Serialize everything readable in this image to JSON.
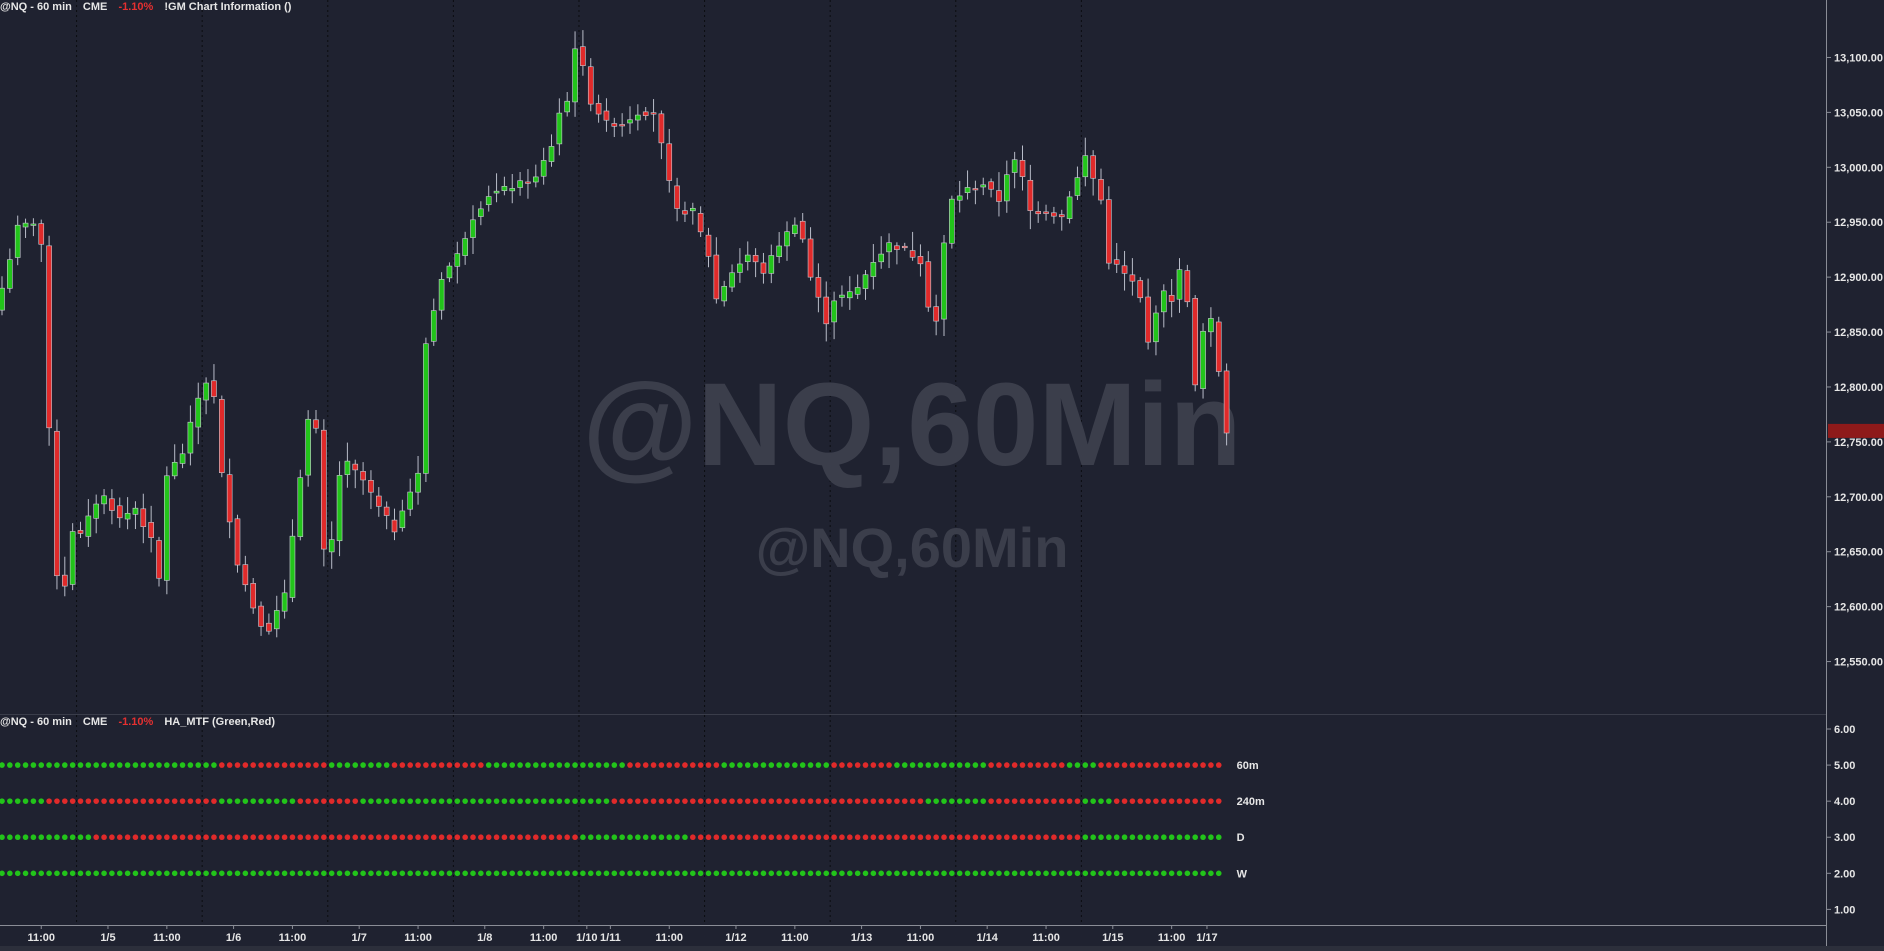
{
  "header_top": {
    "symbol": "@NQ - 60 min",
    "exchange": "CME",
    "change": "-1.10%",
    "indicator": "!GM  Chart Information ()"
  },
  "header_bottom": {
    "symbol": "@NQ - 60 min",
    "exchange": "CME",
    "change": "-1.10%",
    "indicator": "HA_MTF (Green,Red)"
  },
  "colors": {
    "background": "#1f2230",
    "up": "#22c41a",
    "down": "#e02a2a",
    "text": "#e6e6e6",
    "watermark": "#3b3e4b"
  },
  "chart_data": [
    {
      "type": "candlestick",
      "watermark_large": "@NQ,60Min",
      "watermark_small": "@NQ,60Min",
      "y_ticks": [
        12550,
        12600,
        12650,
        12700,
        12750,
        12800,
        12850,
        12900,
        12950,
        13000,
        13050,
        13100
      ],
      "y_tick_labels": [
        "12,550.00",
        "12,600.00",
        "12,650.00",
        "12,700.00",
        "12,750.00",
        "12,800.00",
        "12,850.00",
        "12,900.00",
        "12,950.00",
        "13,000.00",
        "13,050.00",
        "13,100.00"
      ],
      "ylim": [
        12515,
        13125
      ],
      "last_price": 12760,
      "x_labels": [
        "11:00",
        "1/5",
        "11:00",
        "1/6",
        "11:00",
        "1/7",
        "11:00",
        "1/8",
        "11:00",
        "1/10",
        "1/11",
        "11:00",
        "1/12",
        "11:00",
        "1/13",
        "11:00",
        "1/14",
        "11:00",
        "1/15",
        "11:00",
        "1/17"
      ],
      "x_label_positions": [
        5,
        13.5,
        21,
        29.5,
        37,
        45.5,
        53,
        61.5,
        69,
        74.5,
        77.5,
        85,
        93.5,
        101,
        109.5,
        117,
        125.5,
        133,
        141.5,
        149,
        153.5
      ],
      "day_separators": [
        10,
        26,
        42,
        58,
        74,
        90,
        106,
        122,
        138
      ],
      "anchors": [
        [
          0,
          12890
        ],
        [
          2,
          12945
        ],
        [
          4,
          12950
        ],
        [
          5,
          12930
        ],
        [
          6,
          12760
        ],
        [
          7,
          12630
        ],
        [
          8,
          12620
        ],
        [
          9,
          12670
        ],
        [
          10,
          12665
        ],
        [
          12,
          12695
        ],
        [
          13,
          12700
        ],
        [
          15,
          12680
        ],
        [
          17,
          12690
        ],
        [
          19,
          12660
        ],
        [
          20,
          12625
        ],
        [
          21,
          12720
        ],
        [
          23,
          12740
        ],
        [
          25,
          12790
        ],
        [
          26,
          12805
        ],
        [
          27,
          12790
        ],
        [
          28,
          12720
        ],
        [
          29,
          12680
        ],
        [
          30,
          12640
        ],
        [
          32,
          12600
        ],
        [
          33,
          12585
        ],
        [
          34,
          12580
        ],
        [
          36,
          12610
        ],
        [
          38,
          12720
        ],
        [
          39,
          12770
        ],
        [
          40,
          12760
        ],
        [
          41,
          12650
        ],
        [
          42,
          12660
        ],
        [
          43,
          12720
        ],
        [
          44,
          12730
        ],
        [
          46,
          12715
        ],
        [
          48,
          12690
        ],
        [
          50,
          12670
        ],
        [
          51,
          12690
        ],
        [
          53,
          12720
        ],
        [
          54,
          12840
        ],
        [
          56,
          12900
        ],
        [
          58,
          12920
        ],
        [
          60,
          12955
        ],
        [
          62,
          12975
        ],
        [
          64,
          12980
        ],
        [
          66,
          12985
        ],
        [
          68,
          12990
        ],
        [
          70,
          13020
        ],
        [
          71,
          13050
        ],
        [
          72,
          13060
        ],
        [
          73,
          13110
        ],
        [
          74,
          13090
        ],
        [
          75,
          13060
        ],
        [
          77,
          13040
        ],
        [
          79,
          13040
        ],
        [
          81,
          13050
        ],
        [
          83,
          13050
        ],
        [
          84,
          13020
        ],
        [
          85,
          12985
        ],
        [
          86,
          12960
        ],
        [
          88,
          12960
        ],
        [
          89,
          12940
        ],
        [
          90,
          12920
        ],
        [
          91,
          12880
        ],
        [
          93,
          12905
        ],
        [
          95,
          12920
        ],
        [
          97,
          12905
        ],
        [
          99,
          12930
        ],
        [
          101,
          12950
        ],
        [
          102,
          12935
        ],
        [
          103,
          12900
        ],
        [
          105,
          12860
        ],
        [
          106,
          12880
        ],
        [
          108,
          12885
        ],
        [
          109,
          12890
        ],
        [
          111,
          12915
        ],
        [
          113,
          12930
        ],
        [
          115,
          12925
        ],
        [
          117,
          12915
        ],
        [
          118,
          12875
        ],
        [
          119,
          12860
        ],
        [
          120,
          12930
        ],
        [
          121,
          12970
        ],
        [
          123,
          12980
        ],
        [
          125,
          12985
        ],
        [
          127,
          12970
        ],
        [
          128,
          12995
        ],
        [
          129,
          13005
        ],
        [
          130,
          12990
        ],
        [
          131,
          12960
        ],
        [
          133,
          12960
        ],
        [
          135,
          12955
        ],
        [
          136,
          12975
        ],
        [
          137,
          12990
        ],
        [
          138,
          13010
        ],
        [
          139,
          12990
        ],
        [
          140,
          12970
        ],
        [
          141,
          12915
        ],
        [
          142,
          12910
        ],
        [
          144,
          12895
        ],
        [
          145,
          12880
        ],
        [
          146,
          12840
        ],
        [
          147,
          12870
        ],
        [
          148,
          12885
        ],
        [
          149,
          12880
        ],
        [
          150,
          12905
        ],
        [
          151,
          12880
        ],
        [
          152,
          12800
        ],
        [
          153,
          12850
        ],
        [
          154,
          12860
        ],
        [
          155,
          12815
        ],
        [
          156,
          12760
        ]
      ],
      "panels": [
        {
          "name": "HA_MTF (Green,Red)",
          "y_ticks": [
            1,
            2,
            3,
            4,
            5,
            6
          ],
          "y_tick_labels": [
            "1.00",
            "2.00",
            "3.00",
            "4.00",
            "5.00",
            "6.00"
          ],
          "rows": [
            {
              "label": "60m",
              "y": 5,
              "segments": [
                [
                  0,
                  28,
                  "up"
                ],
                [
                  28,
                  14,
                  "down"
                ],
                [
                  42,
                  8,
                  "up"
                ],
                [
                  50,
                  12,
                  "down"
                ],
                [
                  62,
                  18,
                  "up"
                ],
                [
                  80,
                  12,
                  "down"
                ],
                [
                  92,
                  14,
                  "up"
                ],
                [
                  106,
                  8,
                  "down"
                ],
                [
                  114,
                  12,
                  "up"
                ],
                [
                  126,
                  10,
                  "down"
                ],
                [
                  136,
                  4,
                  "up"
                ],
                [
                  140,
                  16,
                  "down"
                ]
              ]
            },
            {
              "label": "240m",
              "y": 4,
              "segments": [
                [
                  0,
                  6,
                  "up"
                ],
                [
                  6,
                  22,
                  "down"
                ],
                [
                  28,
                  10,
                  "up"
                ],
                [
                  38,
                  8,
                  "down"
                ],
                [
                  46,
                  32,
                  "up"
                ],
                [
                  78,
                  40,
                  "down"
                ],
                [
                  118,
                  8,
                  "up"
                ],
                [
                  126,
                  12,
                  "down"
                ],
                [
                  138,
                  4,
                  "up"
                ],
                [
                  142,
                  14,
                  "down"
                ]
              ]
            },
            {
              "label": "D",
              "y": 3,
              "segments": [
                [
                  0,
                  12,
                  "up"
                ],
                [
                  12,
                  62,
                  "down"
                ],
                [
                  74,
                  14,
                  "up"
                ],
                [
                  88,
                  50,
                  "down"
                ],
                [
                  138,
                  18,
                  "up"
                ]
              ]
            },
            {
              "label": "W",
              "y": 2,
              "segments": [
                [
                  0,
                  156,
                  "up"
                ]
              ]
            }
          ]
        }
      ]
    }
  ]
}
